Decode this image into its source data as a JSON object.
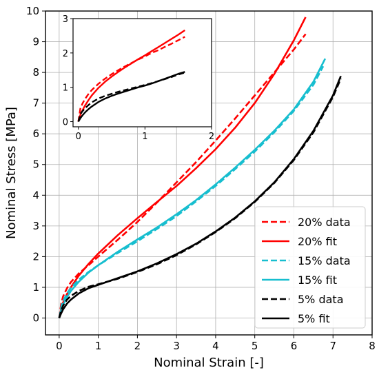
{
  "chart_data": [
    {
      "type": "line",
      "title": "",
      "xlabel": "Nominal Strain [-]",
      "ylabel": "Nominal Stress [MPa]",
      "xlim": [
        -0.35,
        8
      ],
      "ylim": [
        -0.55,
        10
      ],
      "x_ticks": [
        0,
        1,
        2,
        3,
        4,
        5,
        6,
        7,
        8
      ],
      "y_ticks": [
        0,
        1,
        2,
        3,
        4,
        5,
        6,
        7,
        8,
        9,
        10
      ],
      "grid": true,
      "legend_position": "bottom-right",
      "series": [
        {
          "name": "20% data",
          "color": "#ff0000",
          "style": "dashed",
          "x": [
            0,
            0.05,
            0.1,
            0.2,
            0.3,
            0.5,
            0.75,
            1.0,
            1.5,
            2.0,
            2.5,
            3.0,
            3.5,
            4.0,
            4.5,
            5.0,
            5.5,
            6.0,
            6.3
          ],
          "y": [
            0,
            0.45,
            0.7,
            0.97,
            1.17,
            1.45,
            1.72,
            2.0,
            2.55,
            3.13,
            3.76,
            4.42,
            5.08,
            5.78,
            6.5,
            7.25,
            8.0,
            8.75,
            9.25
          ]
        },
        {
          "name": "20% fit",
          "color": "#ff0000",
          "style": "solid",
          "x": [
            0,
            0.05,
            0.1,
            0.2,
            0.3,
            0.5,
            0.75,
            1.0,
            1.5,
            2.0,
            2.5,
            3.0,
            3.5,
            4.0,
            4.5,
            5.0,
            5.5,
            6.0,
            6.3
          ],
          "y": [
            0,
            0.3,
            0.5,
            0.78,
            1.0,
            1.38,
            1.76,
            2.1,
            2.7,
            3.25,
            3.78,
            4.3,
            4.88,
            5.5,
            6.2,
            7.0,
            7.95,
            9.05,
            9.8
          ]
        },
        {
          "name": "15% data",
          "color": "#17becf",
          "style": "dashed",
          "x": [
            0,
            0.05,
            0.1,
            0.2,
            0.3,
            0.5,
            0.75,
            1.0,
            1.5,
            2.0,
            2.5,
            3.0,
            3.5,
            4.0,
            4.5,
            5.0,
            5.5,
            6.0,
            6.5,
            6.75
          ],
          "y": [
            0,
            0.35,
            0.55,
            0.8,
            0.98,
            1.25,
            1.5,
            1.72,
            2.12,
            2.5,
            2.9,
            3.32,
            3.8,
            4.3,
            4.85,
            5.42,
            6.05,
            6.75,
            7.6,
            8.2
          ]
        },
        {
          "name": "15% fit",
          "color": "#17becf",
          "style": "solid",
          "x": [
            0,
            0.05,
            0.1,
            0.2,
            0.3,
            0.5,
            0.75,
            1.0,
            1.5,
            2.0,
            2.5,
            3.0,
            3.5,
            4.0,
            4.5,
            5.0,
            5.5,
            6.0,
            6.5,
            6.8
          ],
          "y": [
            0,
            0.25,
            0.42,
            0.68,
            0.88,
            1.18,
            1.48,
            1.72,
            2.16,
            2.56,
            2.95,
            3.38,
            3.84,
            4.35,
            4.9,
            5.48,
            6.1,
            6.8,
            7.7,
            8.45
          ]
        },
        {
          "name": "5% data",
          "color": "#000000",
          "style": "dashed",
          "x": [
            0,
            0.05,
            0.1,
            0.2,
            0.3,
            0.5,
            0.75,
            1.0,
            1.5,
            2.0,
            2.5,
            3.0,
            3.5,
            4.0,
            4.5,
            5.0,
            5.5,
            6.0,
            6.5,
            7.0,
            7.2
          ],
          "y": [
            0,
            0.25,
            0.4,
            0.6,
            0.72,
            0.88,
            1.02,
            1.1,
            1.28,
            1.5,
            1.75,
            2.05,
            2.4,
            2.8,
            3.25,
            3.78,
            4.4,
            5.15,
            6.05,
            7.2,
            7.8
          ]
        },
        {
          "name": "5% fit",
          "color": "#000000",
          "style": "solid",
          "x": [
            0,
            0.05,
            0.1,
            0.2,
            0.3,
            0.5,
            0.75,
            1.0,
            1.5,
            2.0,
            2.5,
            3.0,
            3.5,
            4.0,
            4.5,
            5.0,
            5.5,
            6.0,
            6.5,
            7.0,
            7.2
          ],
          "y": [
            0,
            0.15,
            0.28,
            0.47,
            0.6,
            0.8,
            0.97,
            1.08,
            1.3,
            1.52,
            1.78,
            2.08,
            2.42,
            2.82,
            3.27,
            3.8,
            4.42,
            5.18,
            6.1,
            7.25,
            7.88
          ]
        }
      ]
    },
    {
      "type": "line",
      "title": "",
      "xlabel": "",
      "ylabel": "",
      "xlim": [
        -0.08,
        2
      ],
      "ylim": [
        -0.15,
        3
      ],
      "x_ticks": [
        0,
        1,
        2
      ],
      "y_ticks": [
        0,
        1,
        2,
        3
      ],
      "grid": false,
      "series": [
        {
          "color": "#ff0000",
          "style": "dashed",
          "x": [
            0,
            0.03,
            0.06,
            0.1,
            0.15,
            0.2,
            0.3,
            0.4,
            0.5,
            0.6,
            0.7,
            0.8,
            0.9,
            1.0,
            1.1,
            1.2,
            1.3,
            1.4,
            1.5,
            1.6
          ],
          "y": [
            0,
            0.38,
            0.52,
            0.66,
            0.8,
            0.92,
            1.1,
            1.25,
            1.38,
            1.5,
            1.61,
            1.71,
            1.81,
            1.9,
            2.0,
            2.08,
            2.18,
            2.27,
            2.37,
            2.47
          ]
        },
        {
          "color": "#ff0000",
          "style": "solid",
          "x": [
            0,
            0.03,
            0.06,
            0.1,
            0.15,
            0.2,
            0.3,
            0.4,
            0.5,
            0.6,
            0.7,
            0.8,
            0.9,
            1.0,
            1.1,
            1.2,
            1.3,
            1.4,
            1.5,
            1.6
          ],
          "y": [
            0,
            0.2,
            0.32,
            0.47,
            0.62,
            0.76,
            0.98,
            1.16,
            1.31,
            1.45,
            1.58,
            1.7,
            1.82,
            1.93,
            2.05,
            2.17,
            2.29,
            2.41,
            2.53,
            2.66
          ]
        },
        {
          "color": "#000000",
          "style": "dashed",
          "x": [
            0,
            0.03,
            0.06,
            0.1,
            0.15,
            0.2,
            0.3,
            0.4,
            0.5,
            0.6,
            0.7,
            0.8,
            0.9,
            1.0,
            1.1,
            1.2,
            1.3,
            1.4,
            1.5,
            1.6
          ],
          "y": [
            0,
            0.22,
            0.3,
            0.39,
            0.48,
            0.56,
            0.67,
            0.75,
            0.81,
            0.87,
            0.92,
            0.97,
            1.02,
            1.07,
            1.12,
            1.18,
            1.24,
            1.3,
            1.37,
            1.43
          ]
        },
        {
          "color": "#000000",
          "style": "solid",
          "x": [
            0,
            0.03,
            0.06,
            0.1,
            0.15,
            0.2,
            0.3,
            0.4,
            0.5,
            0.6,
            0.7,
            0.8,
            0.9,
            1.0,
            1.1,
            1.2,
            1.3,
            1.4,
            1.5,
            1.6
          ],
          "y": [
            0,
            0.1,
            0.18,
            0.27,
            0.36,
            0.44,
            0.57,
            0.67,
            0.75,
            0.82,
            0.88,
            0.94,
            1.0,
            1.05,
            1.11,
            1.18,
            1.25,
            1.32,
            1.39,
            1.45
          ]
        }
      ]
    }
  ]
}
